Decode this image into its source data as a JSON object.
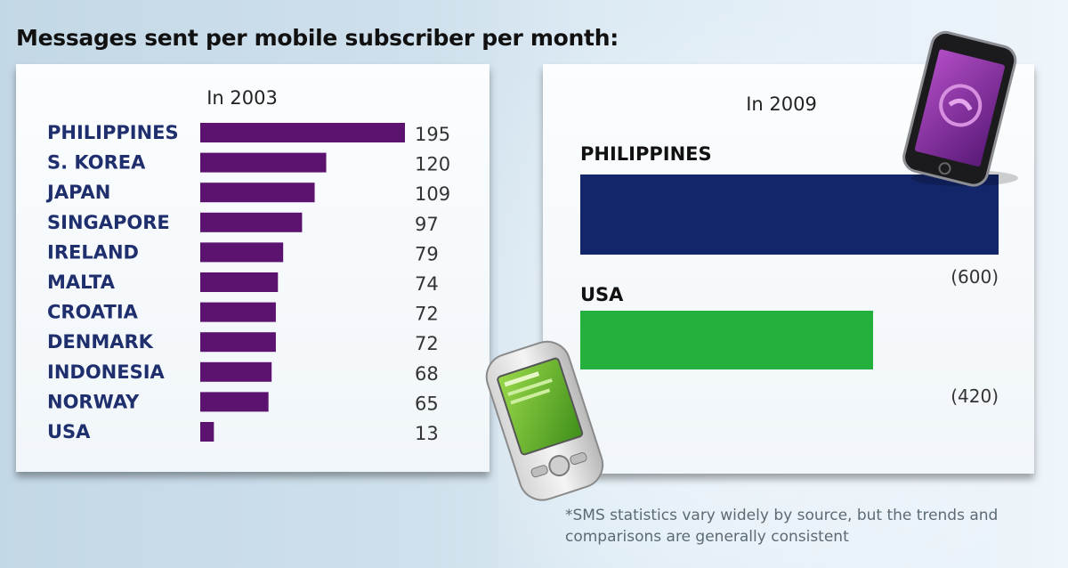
{
  "title": "Messages sent per mobile subscriber per month:",
  "footnote": "*SMS statistics vary widely by source, but the trends and comparisons are generally consistent",
  "chart_data": [
    {
      "type": "bar",
      "orientation": "horizontal",
      "title": "In 2003",
      "categories": [
        "PHILIPPINES",
        "S. KOREA",
        "JAPAN",
        "SINGAPORE",
        "IRELAND",
        "MALTA",
        "CROATIA",
        "DENMARK",
        "INDONESIA",
        "NORWAY",
        "USA"
      ],
      "values": [
        195,
        120,
        109,
        97,
        79,
        74,
        72,
        72,
        68,
        65,
        13
      ],
      "value_labels": [
        "195",
        "120",
        "109",
        "97",
        "79",
        "74",
        "72",
        "72",
        "68",
        "65",
        "13"
      ],
      "xlim": [
        0,
        195
      ],
      "grid": false,
      "bar_color": "#5c1370",
      "label_color": "#1f2f6e"
    },
    {
      "type": "bar",
      "orientation": "horizontal",
      "title": "In 2009",
      "categories": [
        "PHILIPPINES",
        "USA"
      ],
      "values": [
        600,
        420
      ],
      "value_labels": [
        "(600)",
        "(420)"
      ],
      "xlim": [
        0,
        600
      ],
      "grid": false,
      "colors": [
        "#13266a",
        "#23b03c"
      ]
    }
  ]
}
